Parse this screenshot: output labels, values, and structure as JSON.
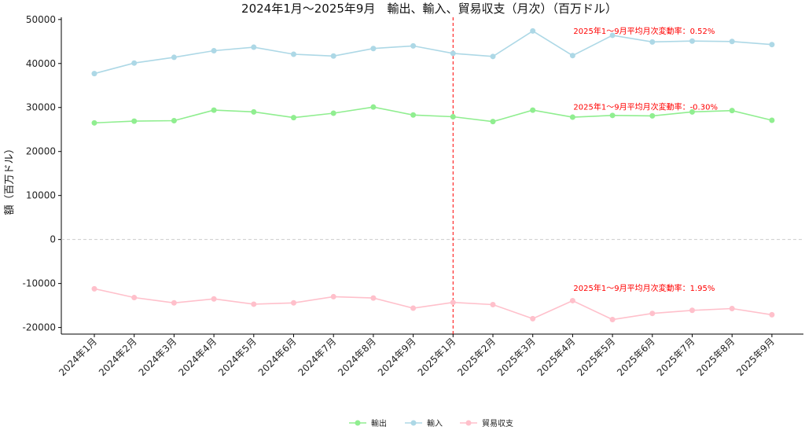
{
  "chart_data": {
    "type": "line",
    "title": "2024年1月～2025年9月　輸出、輸入、貿易収支（月次）（百万ドル）",
    "ylabel": "額（百万ドル）",
    "xlabel": "",
    "ylim": [
      -21500,
      50500
    ],
    "yticks": [
      -20000,
      -10000,
      0,
      10000,
      20000,
      30000,
      40000,
      50000
    ],
    "categories": [
      "2024年1月",
      "2024年2月",
      "2024年3月",
      "2024年4月",
      "2024年5月",
      "2024年6月",
      "2024年7月",
      "2024年8月",
      "2024年9月",
      "2025年1月",
      "2025年2月",
      "2025年3月",
      "2025年4月",
      "2025年5月",
      "2025年6月",
      "2025年7月",
      "2025年8月",
      "2025年9月"
    ],
    "series": [
      {
        "name": "輸出",
        "color": "#90ee90",
        "values": [
          26500,
          26900,
          27000,
          29400,
          29000,
          27700,
          28700,
          30100,
          28300,
          27900,
          26800,
          29400,
          27800,
          28200,
          28100,
          29000,
          29300,
          27100
        ]
      },
      {
        "name": "輸入",
        "color": "#add8e6",
        "values": [
          37700,
          40100,
          41400,
          42900,
          43700,
          42100,
          41700,
          43400,
          44000,
          42300,
          41600,
          47400,
          41800,
          46400,
          44900,
          45100,
          45000,
          44300
        ]
      },
      {
        "name": "貿易収支",
        "color": "#ffc0cb",
        "values": [
          -11200,
          -13200,
          -14400,
          -13500,
          -14700,
          -14400,
          -13000,
          -13300,
          -15600,
          -14300,
          -14800,
          -18000,
          -13900,
          -18200,
          -16800,
          -16100,
          -15700,
          -17100
        ]
      }
    ],
    "reference_line": {
      "category": "2025年1月",
      "color": "#ff0000",
      "style": "dashed"
    },
    "zero_line": {
      "value": 0,
      "color": "#cccccc",
      "style": "dashed"
    },
    "annotations": [
      {
        "text": "2025年1～9月平均月次変動率：0.52%",
        "category": "2025年4月",
        "y": 47500
      },
      {
        "text": "2025年1～9月平均月次変動率：-0.30%",
        "category": "2025年4月",
        "y": 30200
      },
      {
        "text": "2025年1～9月平均月次変動率：1.95%",
        "category": "2025年4月",
        "y": -11000
      }
    ],
    "grid": false,
    "legend_position": "bottom-center"
  }
}
